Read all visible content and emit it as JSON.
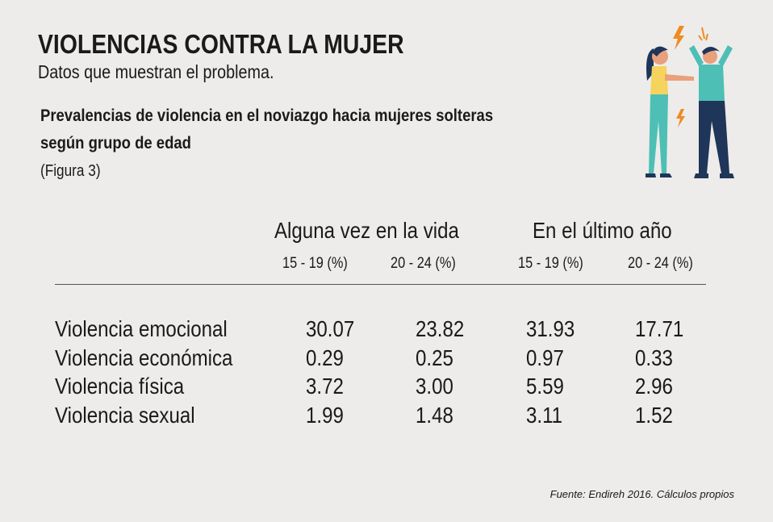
{
  "title": "VIOLENCIAS CONTRA LA MUJER",
  "subtitle": "Datos que muestran el problema.",
  "chart_data": {
    "type": "table",
    "title": "Prevalencias de violencia en el noviazgo hacia mujeres solteras según grupo de edad",
    "figure_label": "(Figura 3)",
    "groups": [
      "Alguna vez en la vida",
      "En el último año"
    ],
    "columns": [
      "15 - 19 (%)",
      "20 - 24 (%)",
      "15 - 19 (%)",
      "20 - 24 (%)"
    ],
    "rows": [
      {
        "label": "Violencia emocional",
        "values": [
          "30.07",
          "23.82",
          "31.93",
          "17.71"
        ]
      },
      {
        "label": "Violencia económica",
        "values": [
          "0.29",
          "0.25",
          "0.97",
          "0.33"
        ]
      },
      {
        "label": "Violencia física",
        "values": [
          "3.72",
          "3.00",
          "5.59",
          "2.96"
        ]
      },
      {
        "label": "Violencia sexual",
        "values": [
          "1.99",
          "1.48",
          "3.11",
          "1.52"
        ]
      }
    ],
    "source": "Fuente: Endireh 2016. Cálculos propios"
  },
  "colors": {
    "background": "#edecea",
    "teal": "#4dbfb5",
    "navy": "#1f3559",
    "orange": "#f08a24",
    "yellow": "#f5d35c"
  }
}
